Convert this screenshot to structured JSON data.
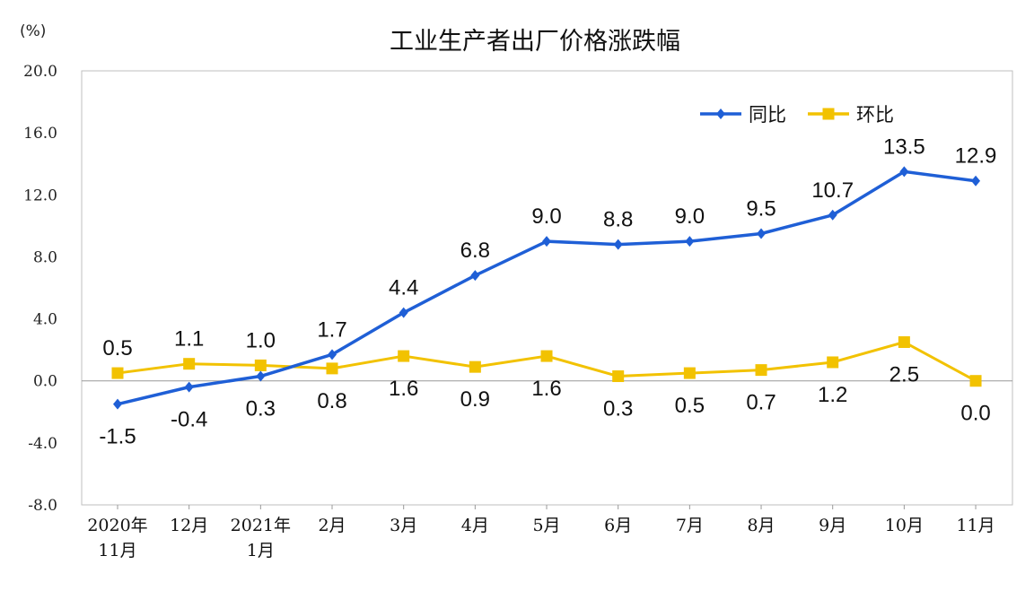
{
  "chart_data": {
    "type": "line",
    "title": "工业生产者出厂价格涨跌幅",
    "unit": "(%)",
    "categories": [
      [
        "2020年",
        "11月"
      ],
      [
        "12月"
      ],
      [
        "2021年",
        "1月"
      ],
      [
        "2月"
      ],
      [
        "3月"
      ],
      [
        "4月"
      ],
      [
        "5月"
      ],
      [
        "6月"
      ],
      [
        "7月"
      ],
      [
        "8月"
      ],
      [
        "9月"
      ],
      [
        "10月"
      ],
      [
        "11月"
      ]
    ],
    "yticks": [
      "20.0",
      "16.0",
      "12.0",
      "8.0",
      "4.0",
      "0.0",
      "-4.0",
      "-8.0"
    ],
    "ylim": [
      -8,
      20
    ],
    "legend_position": "top-right",
    "series": [
      {
        "name": "同比",
        "color": "#1f5fd6",
        "marker": "diamond",
        "values": [
          -1.5,
          -0.4,
          0.3,
          1.7,
          4.4,
          6.8,
          9.0,
          8.8,
          9.0,
          9.5,
          10.7,
          13.5,
          12.9
        ],
        "labels": [
          "-1.5",
          "-0.4",
          "0.3",
          "1.7",
          "4.4",
          "6.8",
          "9.0",
          "8.8",
          "9.0",
          "9.5",
          "10.7",
          "13.5",
          "12.9"
        ]
      },
      {
        "name": "环比",
        "color": "#f2c200",
        "marker": "square",
        "values": [
          0.5,
          1.1,
          1.0,
          0.8,
          1.6,
          0.9,
          1.6,
          0.3,
          0.5,
          0.7,
          1.2,
          2.5,
          0.0
        ],
        "labels": [
          "0.5",
          "1.1",
          "1.0",
          "0.8",
          "1.6",
          "0.9",
          "1.6",
          "0.3",
          "0.5",
          "0.7",
          "1.2",
          "2.5",
          "0.0"
        ]
      }
    ]
  }
}
